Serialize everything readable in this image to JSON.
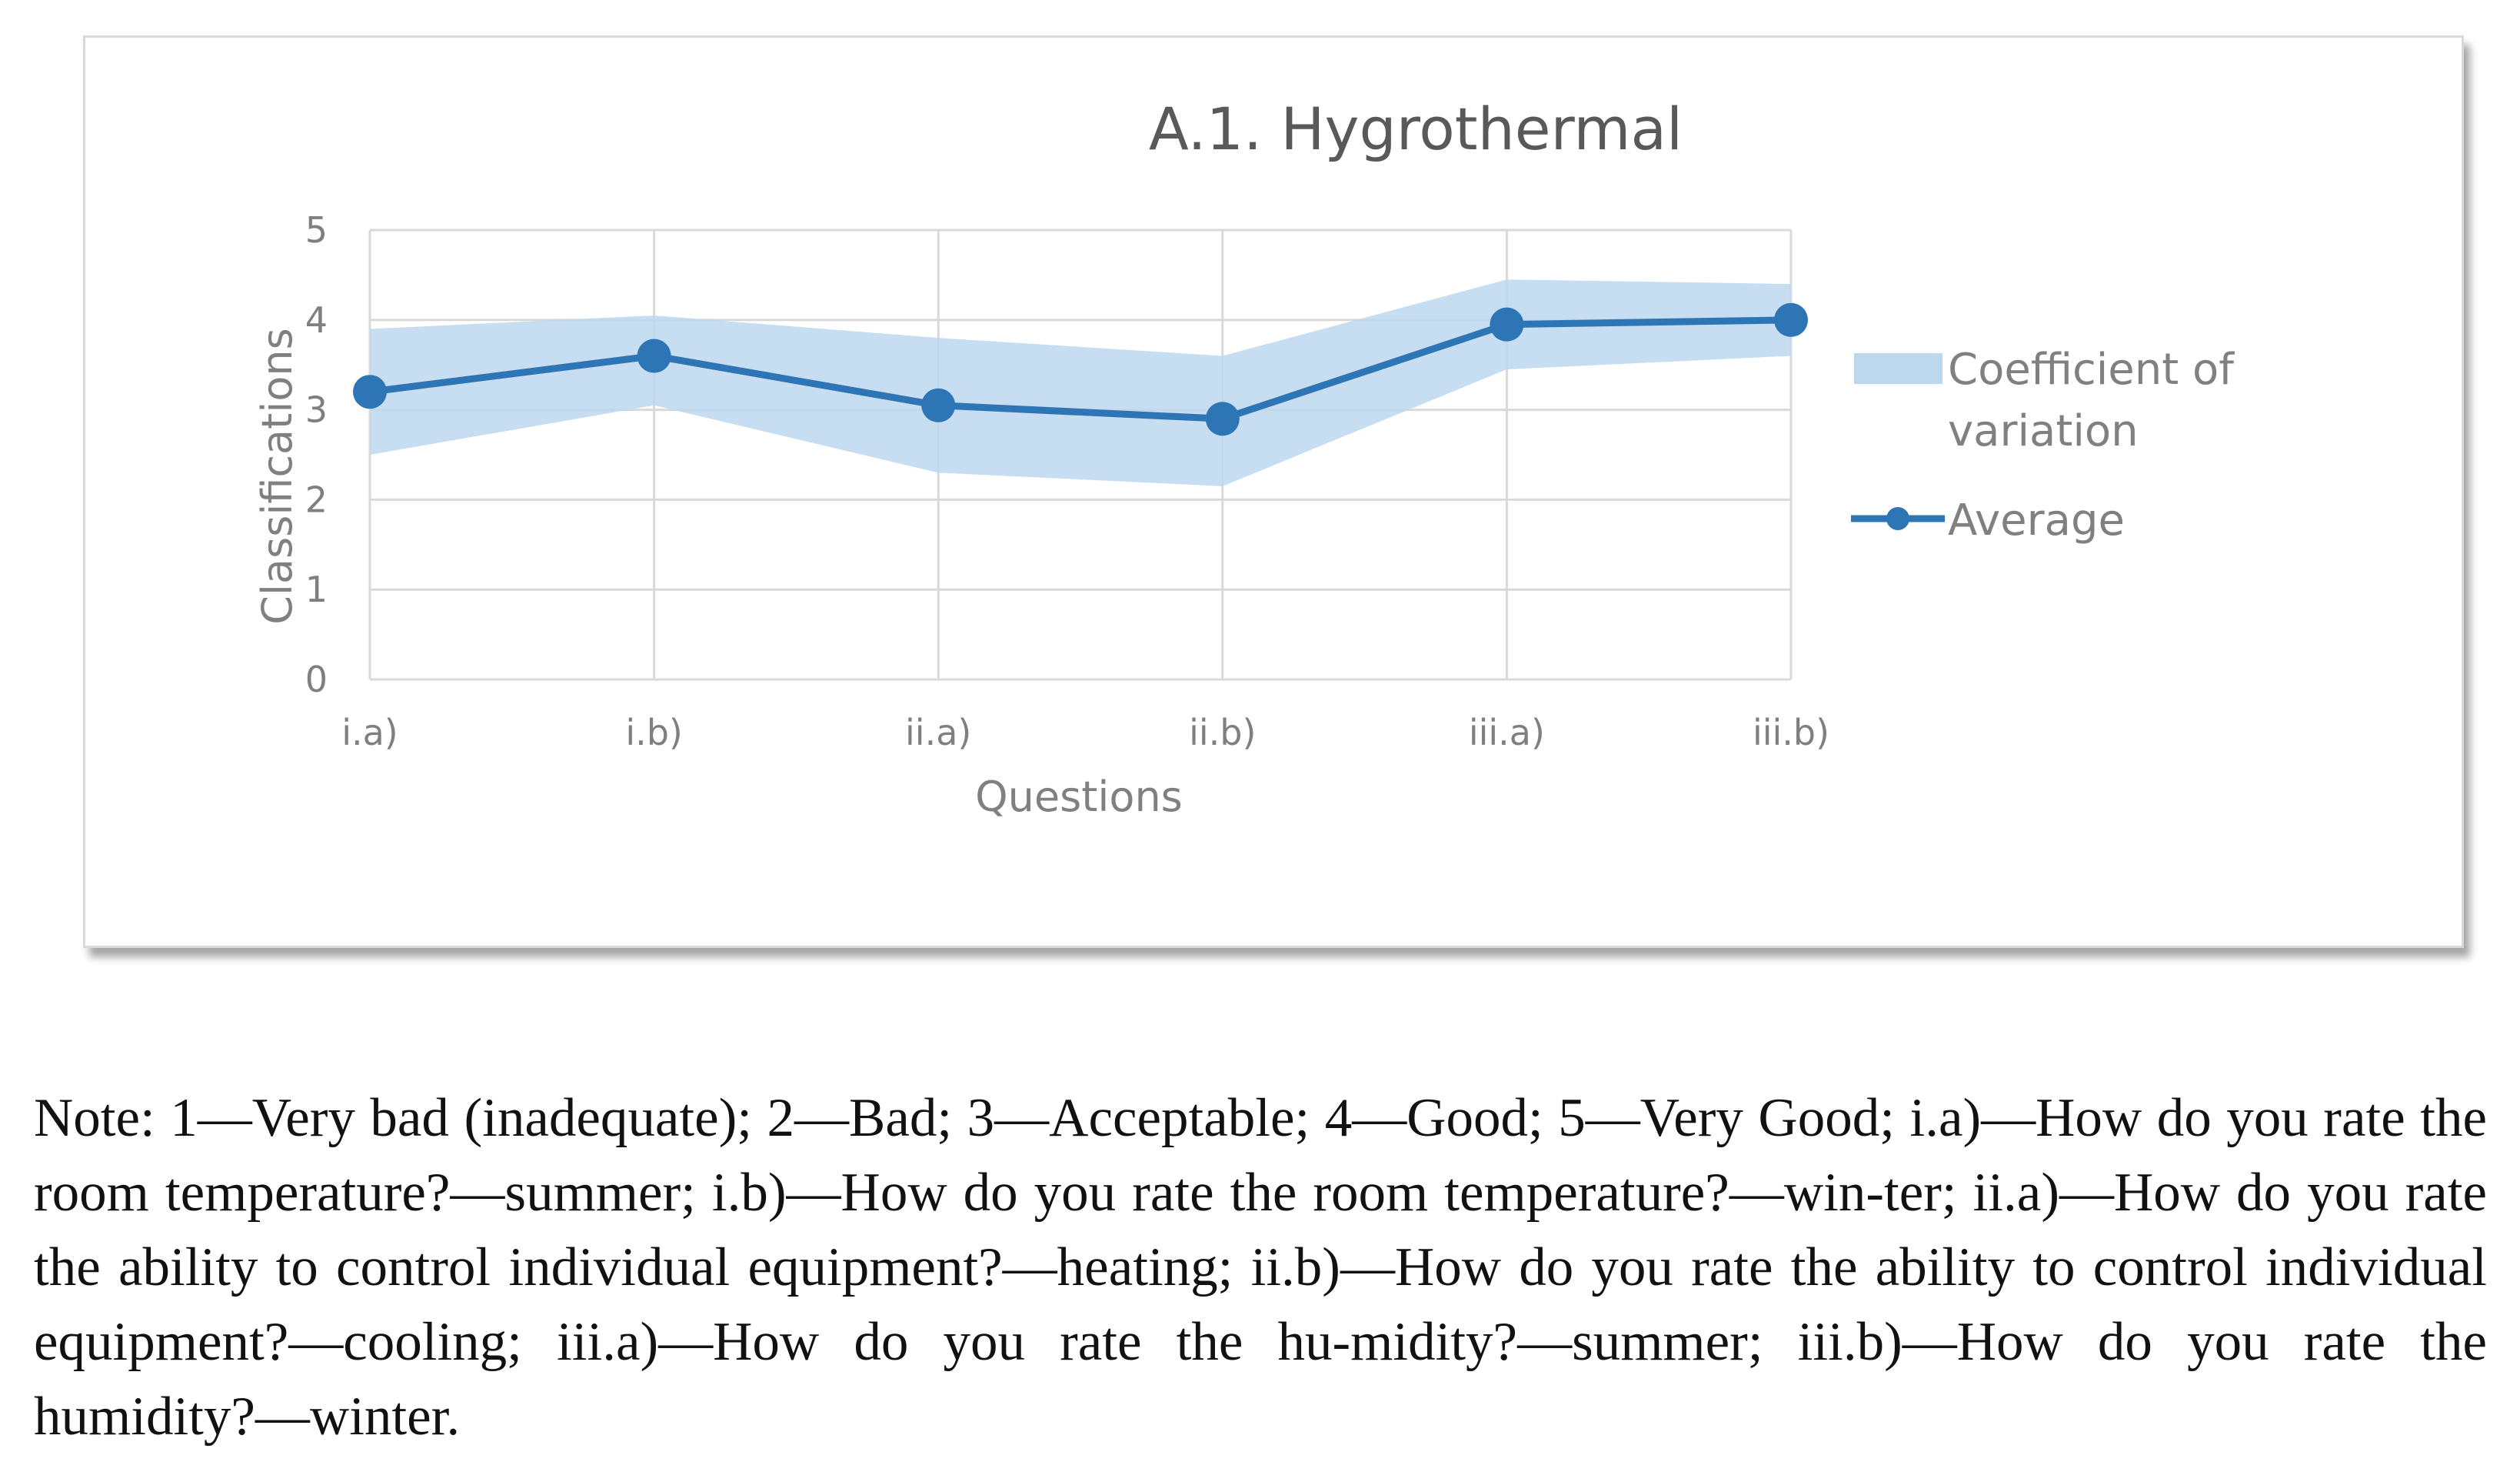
{
  "chart_data": {
    "type": "line",
    "title": "A.1. Hygrothermal",
    "xlabel": "Questions",
    "ylabel": "Classifications",
    "categories": [
      "i.a)",
      "i.b)",
      "ii.a)",
      "ii.b)",
      "iii.a)",
      "iii.b)"
    ],
    "ylim": [
      0,
      5
    ],
    "yticks": [
      0,
      1,
      2,
      3,
      4,
      5
    ],
    "grid": true,
    "legend_position": "right",
    "series": [
      {
        "name": "Average",
        "kind": "line-marker",
        "color": "#2e75b6",
        "values": [
          3.2,
          3.6,
          3.05,
          2.9,
          3.95,
          4.0
        ]
      },
      {
        "name": "Coefficient of variation",
        "kind": "band",
        "color": "#bdd7ee",
        "upper": [
          3.9,
          4.05,
          3.8,
          3.6,
          4.45,
          4.4
        ],
        "lower": [
          2.5,
          3.05,
          2.3,
          2.15,
          3.45,
          3.6
        ]
      }
    ],
    "legend": {
      "cv_line1": "Coefficient of",
      "cv_line2": "variation",
      "average": "Average"
    }
  },
  "note": "Note: 1—Very bad (inadequate); 2—Bad; 3—Acceptable; 4—Good; 5—Very Good; i.a)—How do you rate the room temperature?—summer; i.b)—How do you rate the room temperature?—win-ter; ii.a)—How do you rate the ability to control individual equipment?—heating; ii.b)—How do you rate the ability to control individual equipment?—cooling; iii.a)—How do you rate the hu-midity?—summer; iii.b)—How do you rate the humidity?—winter."
}
